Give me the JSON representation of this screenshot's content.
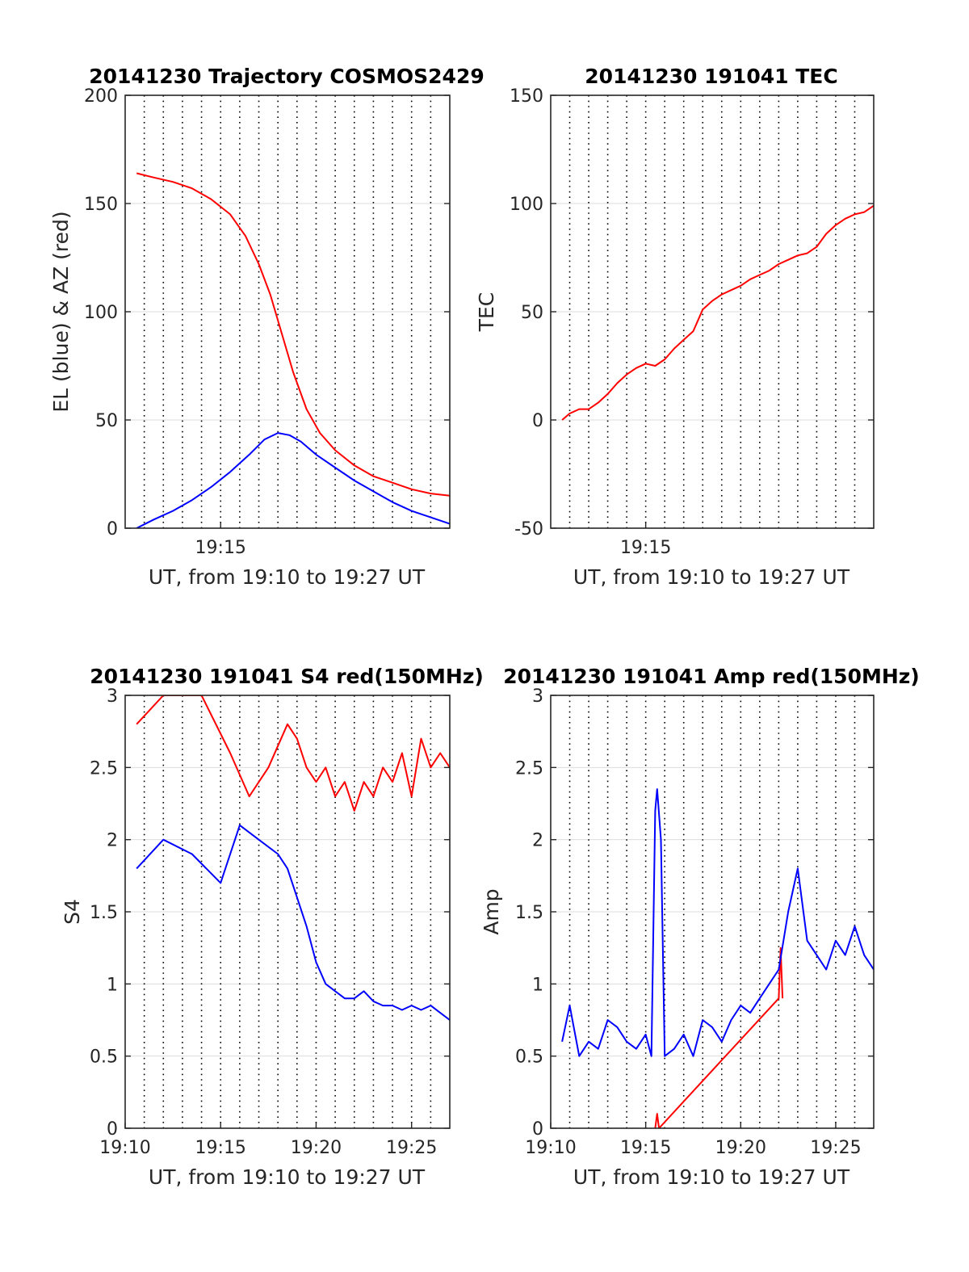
{
  "figure": {
    "panels": [
      {
        "title": "20141230 Trajectory COSMOS2429",
        "ylabel": "EL (blue) & AZ (red)",
        "xlabel": "UT, from 19:10 to 19:27 UT"
      },
      {
        "title": "20141230 191041 TEC",
        "ylabel": "TEC",
        "xlabel": "UT, from 19:10 to 19:27 UT"
      },
      {
        "title": "20141230 191041 S4 red(150MHz)",
        "ylabel": "S4",
        "xlabel": "UT, from 19:10 to 19:27 UT"
      },
      {
        "title": "20141230 191041 Amp red(150MHz)",
        "ylabel": "Amp",
        "xlabel": "UT, from 19:10 to 19:27 UT"
      }
    ]
  },
  "chart_data": [
    {
      "type": "line",
      "title": "20141230 Trajectory COSMOS2429",
      "xlabel": "UT, from 19:10 to 19:27 UT",
      "ylabel": "EL (blue) & AZ (red)",
      "x_unit": "minutes after 19:10 UT",
      "xlim": [
        0,
        17
      ],
      "ylim": [
        0,
        200
      ],
      "yticks": [
        0,
        50,
        100,
        150,
        200
      ],
      "xticks": [
        5
      ],
      "xticklabels": [
        "19:15"
      ],
      "vertical_grid_x": [
        1,
        2,
        3,
        4,
        5,
        6,
        7,
        8,
        9,
        10,
        11,
        12,
        13,
        14,
        15,
        16
      ],
      "grid": true,
      "series": [
        {
          "color": "#ff0000",
          "x": [
            0.6,
            1.5,
            2.5,
            3.5,
            4.5,
            5.5,
            6.3,
            7.0,
            7.6,
            8.2,
            8.8,
            9.5,
            10.2,
            11.0,
            12.0,
            13.0,
            14.0,
            15.0,
            16.0,
            17.0
          ],
          "y": [
            164,
            162,
            160,
            157,
            152,
            145,
            135,
            122,
            108,
            90,
            72,
            55,
            44,
            36,
            29,
            24,
            21,
            18,
            16,
            15
          ]
        },
        {
          "color": "#0000ff",
          "x": [
            0.6,
            1.5,
            2.5,
            3.5,
            4.5,
            5.5,
            6.5,
            7.3,
            8.0,
            8.6,
            9.2,
            10.0,
            11.0,
            12.0,
            13.0,
            14.0,
            15.0,
            16.0,
            17.0
          ],
          "y": [
            0,
            4,
            8,
            13,
            19,
            26,
            34,
            41,
            44,
            43,
            40,
            34,
            28,
            22,
            17,
            12,
            8,
            5,
            2
          ]
        }
      ]
    },
    {
      "type": "line",
      "title": "20141230 191041 TEC",
      "xlabel": "UT, from 19:10 to 19:27 UT",
      "ylabel": "TEC",
      "x_unit": "minutes after 19:10 UT",
      "xlim": [
        0,
        17
      ],
      "ylim": [
        -50,
        150
      ],
      "yticks": [
        -50,
        0,
        50,
        100,
        150
      ],
      "xticks": [
        5
      ],
      "xticklabels": [
        "19:15"
      ],
      "vertical_grid_x": [
        1,
        2,
        3,
        4,
        5,
        6,
        7,
        8,
        9,
        10,
        11,
        12,
        13,
        14,
        15,
        16
      ],
      "grid": true,
      "series": [
        {
          "color": "#ff0000",
          "x": [
            0.6,
            1.0,
            1.5,
            2.0,
            2.5,
            3.0,
            3.5,
            4.0,
            4.5,
            5.0,
            5.5,
            6.0,
            6.5,
            7.0,
            7.5,
            8.0,
            8.5,
            9.0,
            9.5,
            10.0,
            10.5,
            11.0,
            11.5,
            12.0,
            12.5,
            13.0,
            13.5,
            14.0,
            14.5,
            15.0,
            15.5,
            16.0,
            16.5,
            17.0
          ],
          "y": [
            0,
            3,
            5,
            5,
            8,
            12,
            17,
            21,
            24,
            26,
            25,
            28,
            33,
            37,
            41,
            51,
            55,
            58,
            60,
            62,
            65,
            67,
            69,
            72,
            74,
            76,
            77,
            80,
            86,
            90,
            93,
            95,
            96,
            99
          ]
        }
      ]
    },
    {
      "type": "line",
      "title": "20141230 191041 S4 red(150MHz)",
      "xlabel": "UT, from 19:10 to 19:27 UT",
      "ylabel": "S4",
      "x_unit": "minutes after 19:10 UT",
      "xlim": [
        0,
        17
      ],
      "ylim": [
        0,
        3
      ],
      "yticks": [
        0,
        0.5,
        1,
        1.5,
        2,
        2.5,
        3
      ],
      "yticklabels": [
        "0",
        "0.5",
        "1",
        "1.5",
        "2",
        "2.5",
        "3"
      ],
      "xticks": [
        0,
        5,
        10,
        15
      ],
      "xticklabels": [
        "19:10",
        "19:15",
        "19:20",
        "19:25"
      ],
      "vertical_grid_x": [
        1,
        2,
        3,
        4,
        5,
        6,
        7,
        8,
        9,
        10,
        11,
        12,
        13,
        14,
        15,
        16
      ],
      "grid": true,
      "series": [
        {
          "color": "#ff0000",
          "x": [
            0.6,
            2.0,
            4.0,
            5.5,
            6.5,
            7.5,
            8.5,
            9.0,
            9.5,
            10.0,
            10.5,
            11.0,
            11.5,
            12.0,
            12.5,
            13.0,
            13.5,
            14.0,
            14.5,
            15.0,
            15.5,
            16.0,
            16.5,
            17.0
          ],
          "y": [
            2.8,
            3.0,
            3.0,
            2.6,
            2.3,
            2.5,
            2.8,
            2.7,
            2.5,
            2.4,
            2.5,
            2.3,
            2.4,
            2.2,
            2.4,
            2.3,
            2.5,
            2.4,
            2.6,
            2.3,
            2.7,
            2.5,
            2.6,
            2.5
          ]
        },
        {
          "color": "#0000ff",
          "x": [
            0.6,
            2.0,
            3.5,
            5.0,
            6.0,
            7.0,
            8.0,
            8.5,
            9.0,
            9.5,
            10.0,
            10.5,
            11.0,
            11.5,
            12.0,
            12.5,
            13.0,
            13.5,
            14.0,
            14.5,
            15.0,
            15.5,
            16.0,
            16.5,
            17.0
          ],
          "y": [
            1.8,
            2.0,
            1.9,
            1.7,
            2.1,
            2.0,
            1.9,
            1.8,
            1.6,
            1.4,
            1.15,
            1.0,
            0.95,
            0.9,
            0.9,
            0.95,
            0.88,
            0.85,
            0.85,
            0.82,
            0.85,
            0.82,
            0.85,
            0.8,
            0.75
          ]
        }
      ]
    },
    {
      "type": "line",
      "title": "20141230 191041 Amp red(150MHz)",
      "xlabel": "UT, from 19:10 to 19:27 UT",
      "ylabel": "Amp",
      "x_unit": "minutes after 19:10 UT",
      "xlim": [
        0,
        17
      ],
      "ylim": [
        0,
        3
      ],
      "yticks": [
        0,
        0.5,
        1,
        1.5,
        2,
        2.5,
        3
      ],
      "yticklabels": [
        "0",
        "0.5",
        "1",
        "1.5",
        "2",
        "2.5",
        "3"
      ],
      "xticks": [
        0,
        5,
        10,
        15
      ],
      "xticklabels": [
        "19:10",
        "19:15",
        "19:20",
        "19:25"
      ],
      "vertical_grid_x": [
        1,
        2,
        3,
        4,
        5,
        6,
        7,
        8,
        9,
        10,
        11,
        12,
        13,
        14,
        15,
        16
      ],
      "grid": true,
      "series": [
        {
          "color": "#ff0000",
          "x": [
            5.5,
            5.6,
            5.7,
            12.0,
            12.1,
            12.2
          ],
          "y": [
            0.0,
            0.1,
            0.0,
            0.9,
            1.25,
            0.9
          ]
        },
        {
          "color": "#0000ff",
          "x": [
            0.6,
            1.0,
            1.5,
            2.0,
            2.5,
            3.0,
            3.5,
            4.0,
            4.5,
            5.0,
            5.3,
            5.5,
            5.6,
            5.8,
            6.0,
            6.5,
            7.0,
            7.5,
            8.0,
            8.5,
            9.0,
            9.5,
            10.0,
            10.5,
            11.0,
            11.5,
            12.0,
            12.5,
            13.0,
            13.5,
            14.0,
            14.5,
            15.0,
            15.5,
            16.0,
            16.5,
            17.0
          ],
          "y": [
            0.6,
            0.85,
            0.5,
            0.6,
            0.55,
            0.75,
            0.7,
            0.6,
            0.55,
            0.65,
            0.5,
            2.2,
            2.35,
            2.0,
            0.5,
            0.55,
            0.65,
            0.5,
            0.75,
            0.7,
            0.6,
            0.75,
            0.85,
            0.8,
            0.9,
            1.0,
            1.1,
            1.5,
            1.8,
            1.3,
            1.2,
            1.1,
            1.3,
            1.2,
            1.4,
            1.2,
            1.1
          ]
        }
      ]
    }
  ]
}
